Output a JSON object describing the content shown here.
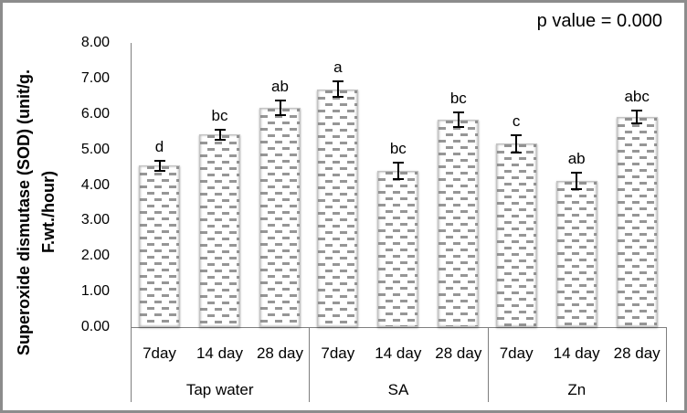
{
  "annotation": {
    "p_value": "p value = 0.000"
  },
  "y_axis": {
    "title_line1": "Superoxide dismutase (SOD) (unit/g.",
    "title_line2": "F.wt./hour)",
    "tick_labels": [
      "8.00",
      "7.00",
      "6.00",
      "5.00",
      "4.00",
      "3.00",
      "2.00",
      "1.00",
      "0.00"
    ]
  },
  "colors": {
    "bar_pattern": "#969696",
    "bar_border": "#c4c4c4",
    "axis_line": "#7f7f7f",
    "frame_border": "#8c8c8c",
    "text": "#000000"
  },
  "chart_data": {
    "type": "bar",
    "title": "",
    "xlabel": "",
    "ylabel": "Superoxide dismutase (SOD) (unit/g. F.wt./hour)",
    "ylim": [
      0,
      8
    ],
    "ytick_interval": 1.0,
    "grid": false,
    "legend": false,
    "annotation": "p value = 0.000",
    "error_bars": true,
    "groups": [
      {
        "label": "Tap water",
        "categories": [
          "7day",
          "14 day",
          "28 day"
        ],
        "values": [
          4.55,
          5.42,
          6.17
        ],
        "errors": [
          0.17,
          0.17,
          0.23
        ],
        "sig_letters": [
          "d",
          "bc",
          "ab"
        ]
      },
      {
        "label": "SA",
        "categories": [
          "7day",
          "14 day",
          "28 day"
        ],
        "values": [
          6.7,
          4.4,
          5.84
        ],
        "errors": [
          0.24,
          0.26,
          0.23
        ],
        "sig_letters": [
          "a",
          "bc",
          "bc"
        ]
      },
      {
        "label": "Zn",
        "categories": [
          "7day",
          "14 day",
          "28 day"
        ],
        "values": [
          5.17,
          4.11,
          5.91
        ],
        "errors": [
          0.27,
          0.26,
          0.21
        ],
        "sig_letters": [
          "c",
          "ab",
          "abc"
        ]
      }
    ]
  }
}
